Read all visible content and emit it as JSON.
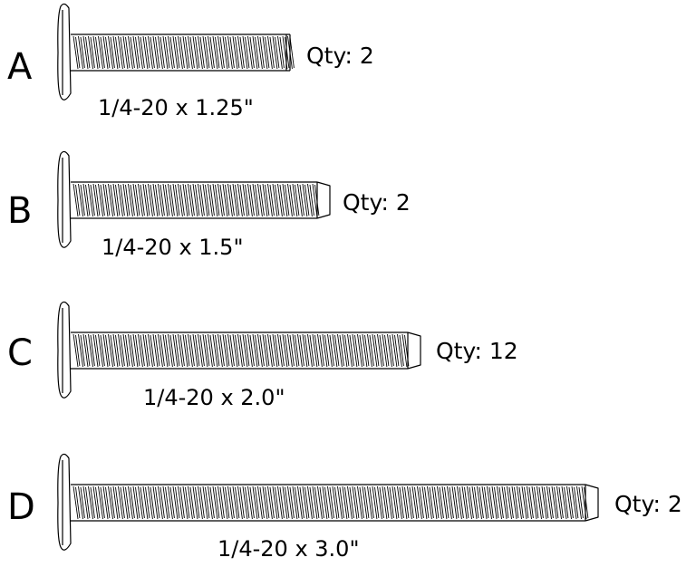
{
  "parts": [
    {
      "letter": "A",
      "qty": "Qty: 2",
      "size": "1/4-20 x 1.25\"",
      "tip": "flat"
    },
    {
      "letter": "B",
      "qty": "Qty: 2",
      "size": "1/4-20 x 1.5\"",
      "tip": "chamfer"
    },
    {
      "letter": "C",
      "qty": "Qty: 12",
      "size": "1/4-20 x 2.0\"",
      "tip": "chamfer"
    },
    {
      "letter": "D",
      "qty": "Qty: 2",
      "size": "1/4-20 x 3.0\"",
      "tip": "chamfer"
    }
  ]
}
